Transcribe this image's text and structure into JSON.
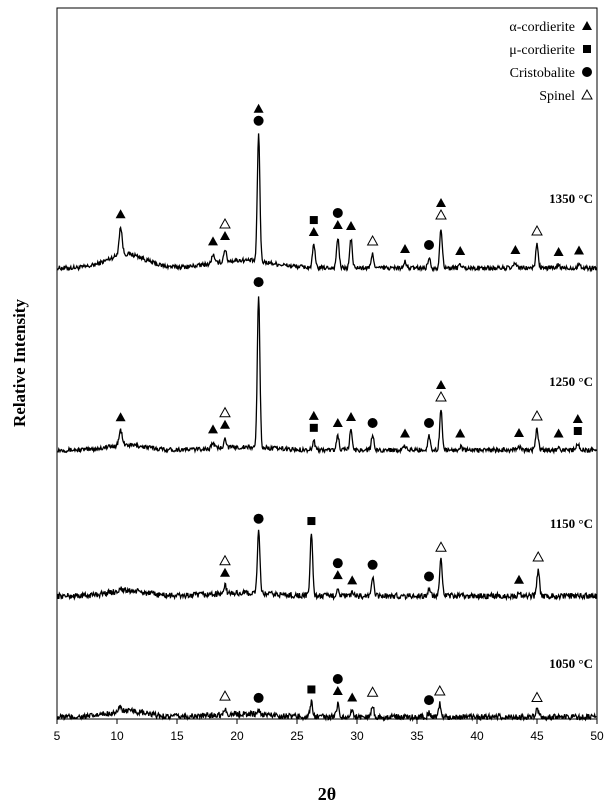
{
  "chart_data": {
    "type": "line",
    "xlabel": "2θ",
    "ylabel": "Relative Intensity",
    "xlim": [
      5,
      50
    ],
    "x_ticks": [
      "5",
      "10",
      "15",
      "20",
      "25",
      "30",
      "35",
      "40",
      "45",
      "50"
    ],
    "legend": [
      {
        "label": "α-cordierite",
        "symbol": "filled-triangle"
      },
      {
        "label": "μ-cordierite",
        "symbol": "filled-square"
      },
      {
        "label": "Cristobalite",
        "symbol": "filled-circle"
      },
      {
        "label": "Spinel",
        "symbol": "open-triangle"
      }
    ],
    "series": [
      {
        "name": "1350 °C",
        "baseline": 0.62,
        "peaks": [
          {
            "x": 10.3,
            "h": 0.55,
            "w": 0.18
          },
          {
            "x": 18.0,
            "h": 0.18,
            "w": 0.15
          },
          {
            "x": 19.0,
            "h": 0.25,
            "w": 0.15
          },
          {
            "x": 21.8,
            "h": 2.55,
            "w": 0.15
          },
          {
            "x": 26.4,
            "h": 0.45,
            "w": 0.15
          },
          {
            "x": 28.4,
            "h": 0.6,
            "w": 0.15
          },
          {
            "x": 29.5,
            "h": 0.58,
            "w": 0.15
          },
          {
            "x": 31.3,
            "h": 0.28,
            "w": 0.15
          },
          {
            "x": 34.0,
            "h": 0.12,
            "w": 0.15
          },
          {
            "x": 36.0,
            "h": 0.2,
            "w": 0.15
          },
          {
            "x": 37.0,
            "h": 0.8,
            "w": 0.15
          },
          {
            "x": 38.6,
            "h": 0.08,
            "w": 0.15
          },
          {
            "x": 43.2,
            "h": 0.1,
            "w": 0.15
          },
          {
            "x": 45.0,
            "h": 0.48,
            "w": 0.15
          },
          {
            "x": 46.8,
            "h": 0.06,
            "w": 0.15
          },
          {
            "x": 48.5,
            "h": 0.09,
            "w": 0.15
          }
        ],
        "markers": [
          {
            "x": 10.3,
            "symbols": [
              "filled-triangle"
            ]
          },
          {
            "x": 18.0,
            "symbols": [
              "filled-triangle"
            ]
          },
          {
            "x": 19.0,
            "symbols": [
              "filled-triangle",
              "open-triangle"
            ]
          },
          {
            "x": 21.8,
            "symbols": [
              "filled-circle",
              "filled-triangle"
            ]
          },
          {
            "x": 26.4,
            "symbols": [
              "filled-triangle",
              "filled-square"
            ]
          },
          {
            "x": 28.4,
            "symbols": [
              "filled-triangle",
              "filled-circle"
            ]
          },
          {
            "x": 29.5,
            "symbols": [
              "filled-triangle"
            ]
          },
          {
            "x": 31.3,
            "symbols": [
              "open-triangle"
            ]
          },
          {
            "x": 34.0,
            "symbols": [
              "filled-triangle"
            ]
          },
          {
            "x": 36.0,
            "symbols": [
              "filled-circle"
            ]
          },
          {
            "x": 37.0,
            "symbols": [
              "open-triangle",
              "filled-triangle"
            ]
          },
          {
            "x": 38.6,
            "symbols": [
              "filled-triangle"
            ]
          },
          {
            "x": 43.2,
            "symbols": [
              "filled-triangle"
            ]
          },
          {
            "x": 45.0,
            "symbols": [
              "open-triangle"
            ]
          },
          {
            "x": 46.8,
            "symbols": [
              "filled-triangle"
            ]
          },
          {
            "x": 48.5,
            "symbols": [
              "filled-triangle"
            ]
          }
        ]
      },
      {
        "name": "1250 °C",
        "baseline": 0.22,
        "peaks": [
          {
            "x": 10.3,
            "h": 0.3,
            "w": 0.18
          },
          {
            "x": 18.0,
            "h": 0.12,
            "w": 0.15
          },
          {
            "x": 19.0,
            "h": 0.2,
            "w": 0.15
          },
          {
            "x": 21.8,
            "h": 3.05,
            "w": 0.15
          },
          {
            "x": 26.4,
            "h": 0.18,
            "w": 0.15
          },
          {
            "x": 28.4,
            "h": 0.28,
            "w": 0.15
          },
          {
            "x": 29.5,
            "h": 0.4,
            "w": 0.15
          },
          {
            "x": 31.3,
            "h": 0.28,
            "w": 0.15
          },
          {
            "x": 34.0,
            "h": 0.07,
            "w": 0.15
          },
          {
            "x": 36.0,
            "h": 0.28,
            "w": 0.15
          },
          {
            "x": 37.0,
            "h": 0.8,
            "w": 0.15
          },
          {
            "x": 38.6,
            "h": 0.07,
            "w": 0.15
          },
          {
            "x": 43.5,
            "h": 0.08,
            "w": 0.15
          },
          {
            "x": 45.0,
            "h": 0.42,
            "w": 0.15
          },
          {
            "x": 46.8,
            "h": 0.07,
            "w": 0.15
          },
          {
            "x": 48.4,
            "h": 0.12,
            "w": 0.15
          }
        ],
        "markers": [
          {
            "x": 10.3,
            "symbols": [
              "filled-triangle"
            ]
          },
          {
            "x": 18.0,
            "symbols": [
              "filled-triangle"
            ]
          },
          {
            "x": 19.0,
            "symbols": [
              "filled-triangle",
              "open-triangle"
            ]
          },
          {
            "x": 21.8,
            "symbols": [
              "filled-circle"
            ]
          },
          {
            "x": 26.4,
            "symbols": [
              "filled-square",
              "filled-triangle"
            ]
          },
          {
            "x": 28.4,
            "symbols": [
              "filled-triangle"
            ]
          },
          {
            "x": 29.5,
            "symbols": [
              "filled-triangle"
            ]
          },
          {
            "x": 31.3,
            "symbols": [
              "filled-circle"
            ]
          },
          {
            "x": 34.0,
            "symbols": [
              "filled-triangle"
            ]
          },
          {
            "x": 36.0,
            "symbols": [
              "filled-circle"
            ]
          },
          {
            "x": 37.0,
            "symbols": [
              "open-triangle",
              "filled-triangle"
            ]
          },
          {
            "x": 38.6,
            "symbols": [
              "filled-triangle"
            ]
          },
          {
            "x": 43.5,
            "symbols": [
              "filled-triangle"
            ]
          },
          {
            "x": 45.0,
            "symbols": [
              "open-triangle"
            ]
          },
          {
            "x": 46.8,
            "symbols": [
              "filled-triangle"
            ]
          },
          {
            "x": 48.4,
            "symbols": [
              "filled-square",
              "filled-triangle"
            ]
          }
        ]
      },
      {
        "name": "1150 °C",
        "baseline": 0.18,
        "peaks": [
          {
            "x": 10.3,
            "h": 0.04,
            "w": 0.18
          },
          {
            "x": 19.0,
            "h": 0.12,
            "w": 0.15
          },
          {
            "x": 21.8,
            "h": 0.95,
            "w": 0.15
          },
          {
            "x": 26.2,
            "h": 0.95,
            "w": 0.15
          },
          {
            "x": 28.4,
            "h": 0.12,
            "w": 0.15
          },
          {
            "x": 29.6,
            "h": 0.04,
            "w": 0.15
          },
          {
            "x": 31.3,
            "h": 0.28,
            "w": 0.15
          },
          {
            "x": 36.0,
            "h": 0.1,
            "w": 0.15
          },
          {
            "x": 37.0,
            "h": 0.55,
            "w": 0.15
          },
          {
            "x": 43.5,
            "h": 0.05,
            "w": 0.15
          },
          {
            "x": 45.1,
            "h": 0.4,
            "w": 0.15
          }
        ],
        "markers": [
          {
            "x": 19.0,
            "symbols": [
              "filled-triangle",
              "open-triangle"
            ]
          },
          {
            "x": 21.8,
            "symbols": [
              "filled-circle"
            ]
          },
          {
            "x": 26.2,
            "symbols": [
              "filled-square"
            ]
          },
          {
            "x": 28.4,
            "symbols": [
              "filled-triangle",
              "filled-circle"
            ]
          },
          {
            "x": 29.6,
            "symbols": [
              "filled-triangle"
            ]
          },
          {
            "x": 31.3,
            "symbols": [
              "filled-circle"
            ]
          },
          {
            "x": 36.0,
            "symbols": [
              "filled-circle"
            ]
          },
          {
            "x": 37.0,
            "symbols": [
              "open-triangle"
            ]
          },
          {
            "x": 43.5,
            "symbols": [
              "filled-triangle"
            ]
          },
          {
            "x": 45.1,
            "symbols": [
              "open-triangle"
            ]
          }
        ]
      },
      {
        "name": "1050 °C",
        "baseline": 0.2,
        "peaks": [
          {
            "x": 10.3,
            "h": 0.06,
            "w": 0.18
          },
          {
            "x": 19.0,
            "h": 0.08,
            "w": 0.15
          },
          {
            "x": 21.8,
            "h": 0.05,
            "w": 0.15
          },
          {
            "x": 26.2,
            "h": 0.22,
            "w": 0.15
          },
          {
            "x": 28.4,
            "h": 0.2,
            "w": 0.15
          },
          {
            "x": 29.6,
            "h": 0.1,
            "w": 0.15
          },
          {
            "x": 31.3,
            "h": 0.18,
            "w": 0.15
          },
          {
            "x": 36.0,
            "h": 0.06,
            "w": 0.15
          },
          {
            "x": 36.9,
            "h": 0.2,
            "w": 0.15
          },
          {
            "x": 45.0,
            "h": 0.1,
            "w": 0.15
          }
        ],
        "markers": [
          {
            "x": 19.0,
            "symbols": [
              "open-triangle"
            ]
          },
          {
            "x": 21.8,
            "symbols": [
              "filled-circle"
            ]
          },
          {
            "x": 26.2,
            "symbols": [
              "filled-square"
            ]
          },
          {
            "x": 28.4,
            "symbols": [
              "filled-triangle",
              "filled-circle"
            ]
          },
          {
            "x": 29.6,
            "symbols": [
              "filled-triangle"
            ]
          },
          {
            "x": 31.3,
            "symbols": [
              "open-triangle"
            ]
          },
          {
            "x": 36.0,
            "symbols": [
              "filled-circle"
            ]
          },
          {
            "x": 36.9,
            "symbols": [
              "open-triangle"
            ]
          },
          {
            "x": 45.0,
            "symbols": [
              "open-triangle"
            ]
          }
        ]
      }
    ]
  }
}
